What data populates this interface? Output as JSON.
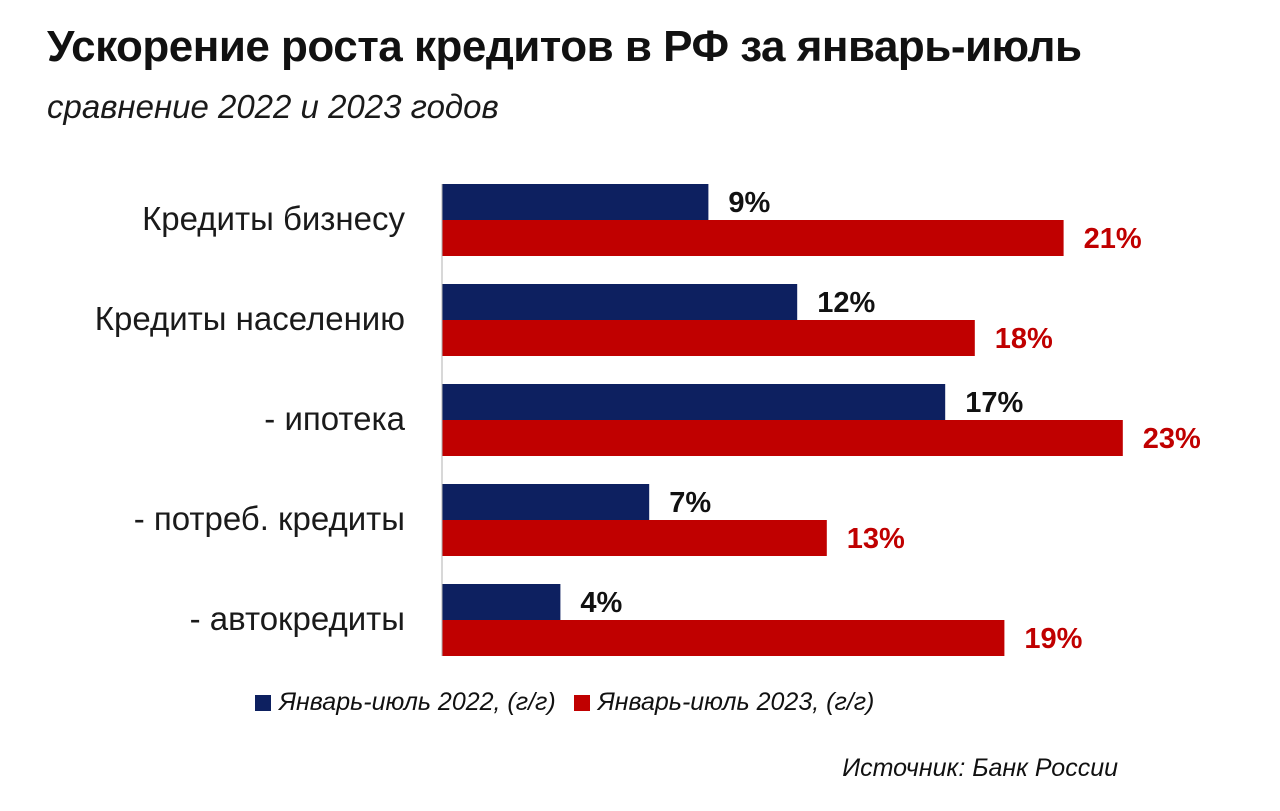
{
  "title": "Ускорение роста кредитов в РФ за январь-июль",
  "subtitle": "сравнение  2022 и 2023  годов",
  "source": "Источник: Банк России",
  "colors": {
    "series_2022": "#0d2060",
    "series_2023": "#c00000",
    "label_2022": "#111111",
    "label_2023": "#c00000"
  },
  "chart_data": {
    "type": "bar",
    "orientation": "horizontal",
    "categories": [
      "Кредиты бизнесу",
      "Кредиты населению",
      "- ипотека",
      "- потреб. кредиты",
      "- автокредиты"
    ],
    "series": [
      {
        "name": "Январь-июль 2022, (г/г)",
        "values": [
          9,
          12,
          17,
          7,
          4
        ],
        "labels": [
          "9%",
          "12%",
          "17%",
          "7%",
          "4%"
        ]
      },
      {
        "name": "Январь-июль 2023, (г/г)",
        "values": [
          21,
          18,
          23,
          13,
          19
        ],
        "labels": [
          "21%",
          "18%",
          "23%",
          "13%",
          "19%"
        ]
      }
    ],
    "unit": "%",
    "xlim": [
      0,
      23
    ],
    "grid": false,
    "legend_position": "bottom"
  }
}
